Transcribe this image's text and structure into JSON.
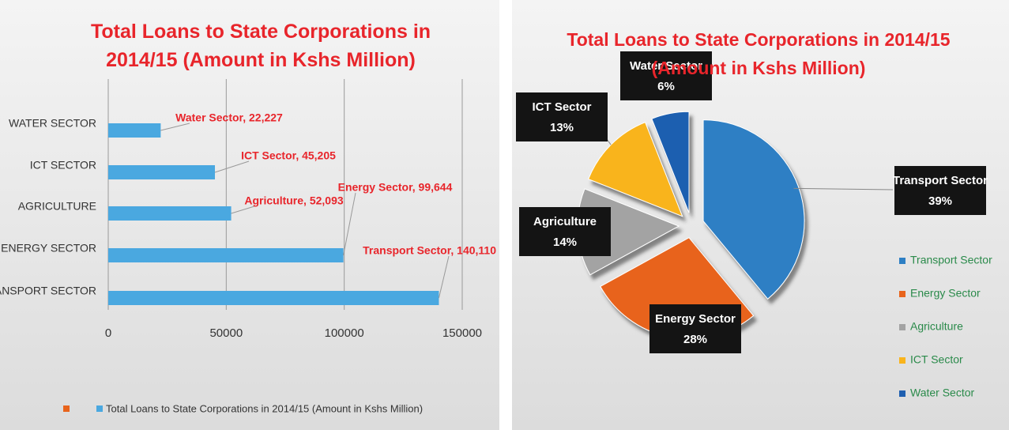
{
  "chart_data": [
    {
      "type": "barh",
      "title": "Total Loans to State Corporations in 2014/15 (Amount in Kshs Million)",
      "categories": [
        "WATER SECTOR",
        "ICT SECTOR",
        "AGRICULTURE",
        "ENERGY SECTOR",
        "TRANSPORT SECTOR"
      ],
      "series": [
        {
          "name": "Total Loans to State Corporations in 2014/15 (Amount in Kshs Million)",
          "color": "#4aa8e0",
          "values": [
            22227,
            45205,
            52093,
            99644,
            140110
          ],
          "value_labels": [
            "Water Sector, 22,227",
            "ICT Sector, 45,205",
            "Agriculture, 52,093",
            "Energy Sector, 99,644",
            "Transport Sector, 140,110"
          ]
        }
      ],
      "xlim": [
        0,
        150000
      ],
      "xticks": [
        0,
        50000,
        100000,
        150000
      ],
      "grid": true,
      "legend": "bottom"
    },
    {
      "type": "pie",
      "title": "Total Loans to State Corporations in 2014/15 (Amount in Kshs Million)",
      "categories": [
        "Transport Sector",
        "Energy Sector",
        "Agriculture",
        "ICT Sector",
        "Water Sector"
      ],
      "values": [
        39,
        28,
        14,
        13,
        6
      ],
      "value_labels": [
        "39%",
        "28%",
        "14%",
        "13%",
        "6%"
      ],
      "colors": [
        "#2e7fc4",
        "#e8641c",
        "#a3a3a3",
        "#f9b41c",
        "#1f5fb0"
      ],
      "legend": "right"
    }
  ]
}
